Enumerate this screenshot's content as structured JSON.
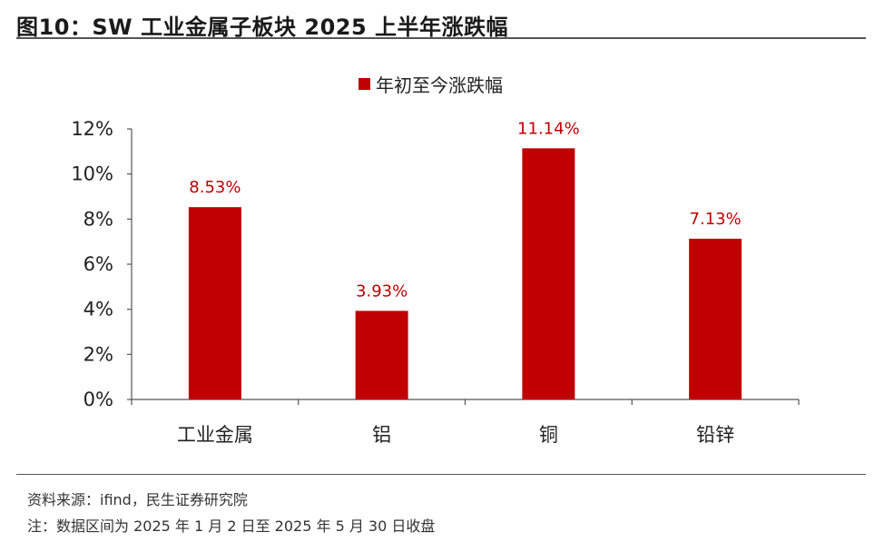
{
  "header": {
    "title": "图10：SW 工业金属子板块 2025 上半年涨跌幅"
  },
  "footer": {
    "source": "资料来源：ifind，民生证券研究院",
    "note": "注：数据区间为 2025 年 1 月 2 日至 2025 年 5 月 30 日收盘"
  },
  "colors": {
    "bar": "#c00000",
    "data_label": "#c00000",
    "axis": "#555555"
  },
  "chart_data": {
    "type": "bar",
    "title": "",
    "xlabel": "",
    "ylabel": "",
    "categories": [
      "工业金属",
      "铝",
      "铜",
      "铅锌"
    ],
    "series": [
      {
        "name": "年初至今涨跌幅",
        "values": [
          8.53,
          3.93,
          11.14,
          7.13
        ],
        "labels": [
          "8.53%",
          "3.93%",
          "11.14%",
          "7.13%"
        ]
      }
    ],
    "ylim": [
      0,
      12
    ],
    "yticks": [
      0,
      2,
      4,
      6,
      8,
      10,
      12
    ],
    "ytick_labels": [
      "0%",
      "2%",
      "4%",
      "6%",
      "8%",
      "10%",
      "12%"
    ],
    "grid": false,
    "legend_position": "top-center"
  }
}
